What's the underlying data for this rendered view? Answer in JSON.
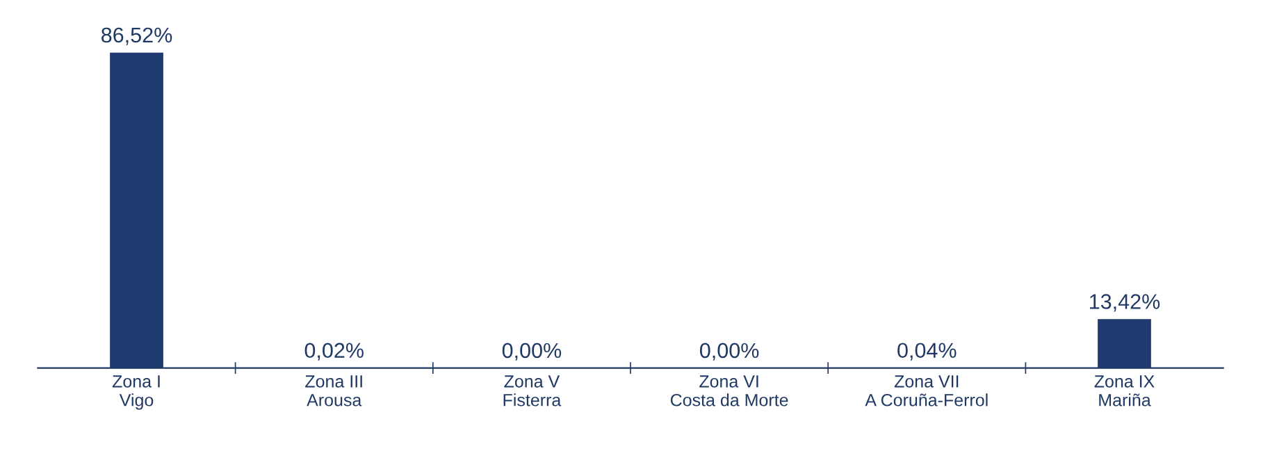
{
  "chart_data": {
    "type": "bar",
    "categories": [
      "Zona I\nVigo",
      "Zona III\nArousa",
      "Zona V\nFisterra",
      "Zona VI\nCosta da Morte",
      "Zona VII\nA Coruña-Ferrol",
      "Zona IX\nMariña"
    ],
    "values": [
      86.52,
      0.02,
      0.0,
      0.0,
      0.04,
      13.42
    ],
    "value_labels": [
      "86,52%",
      "0,02%",
      "0,00%",
      "0,00%",
      "0,04%",
      "13,42%"
    ],
    "color": "#1f3a70",
    "grid": false
  }
}
